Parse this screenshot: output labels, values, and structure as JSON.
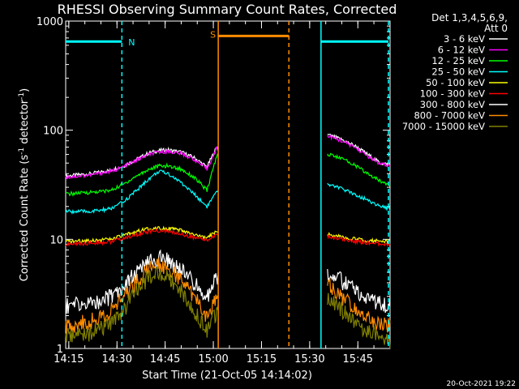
{
  "chart_data": {
    "type": "line",
    "title": "RHESSI Observing Summary Count Rates, Corrected",
    "xlabel": "Start Time (21-Oct-05 14:14:02)",
    "ylabel_main": "Corrected Count Rate (s",
    "ylabel_sup1": "-1",
    "ylabel_mid": " detector",
    "ylabel_sup2": "-1",
    "ylabel_end": ")",
    "x_start_min": 0,
    "x_end_min": 101,
    "y_scale": "log",
    "ylim": [
      1,
      1000
    ],
    "x_ticks": [
      {
        "min": 0.97,
        "label": "14:15"
      },
      {
        "min": 15.97,
        "label": "14:30"
      },
      {
        "min": 30.97,
        "label": "14:45"
      },
      {
        "min": 45.97,
        "label": "15:00"
      },
      {
        "min": 60.97,
        "label": "15:15"
      },
      {
        "min": 75.97,
        "label": "15:30"
      },
      {
        "min": 90.97,
        "label": "15:45"
      }
    ],
    "y_ticks": [
      {
        "value": 1,
        "label": "1"
      },
      {
        "value": 10,
        "label": "10"
      },
      {
        "value": 100,
        "label": "100"
      },
      {
        "value": 1000,
        "label": "1000"
      }
    ],
    "legend_header": [
      "Det 1,3,4,5,6,9,",
      "Att 0"
    ],
    "legend_position": "right",
    "gap_minutes": [
      47.5,
      81.5
    ],
    "series": [
      {
        "name": "3 - 6 keV",
        "color": "#ffffff",
        "x": [
          0,
          8,
          14,
          18,
          22,
          26,
          29,
          32,
          36,
          40,
          44,
          47,
          82,
          86,
          90,
          94,
          98,
          101
        ],
        "y": [
          38,
          40,
          43,
          47,
          54,
          62,
          65,
          66,
          63,
          56,
          46,
          70,
          90,
          82,
          72,
          60,
          50,
          48
        ]
      },
      {
        "name": "6 - 12 keV",
        "color": "#ff00ff",
        "x": [
          0,
          8,
          14,
          18,
          22,
          26,
          29,
          32,
          36,
          40,
          44,
          47,
          82,
          86,
          90,
          94,
          98,
          101
        ],
        "y": [
          37,
          39,
          42,
          46,
          53,
          60,
          63,
          64,
          61,
          54,
          44,
          68,
          88,
          80,
          70,
          58,
          49,
          47
        ]
      },
      {
        "name": "12 - 25 keV",
        "color": "#00ff00",
        "x": [
          0,
          8,
          14,
          18,
          22,
          26,
          29,
          32,
          36,
          40,
          44,
          47,
          82,
          86,
          90,
          94,
          98,
          101
        ],
        "y": [
          26,
          27,
          28,
          32,
          38,
          44,
          47,
          47,
          44,
          37,
          28,
          58,
          60,
          55,
          48,
          40,
          34,
          32
        ]
      },
      {
        "name": "25 - 50 keV",
        "color": "#00ffff",
        "x": [
          0,
          8,
          14,
          18,
          22,
          26,
          29,
          32,
          36,
          40,
          44,
          47,
          82,
          86,
          90,
          94,
          98,
          101
        ],
        "y": [
          18,
          18,
          19,
          22,
          28,
          36,
          42,
          40,
          33,
          26,
          20,
          27,
          32,
          29,
          26,
          23,
          20,
          19
        ]
      },
      {
        "name": "50 - 100 keV",
        "color": "#ffff00",
        "x": [
          0,
          8,
          14,
          18,
          22,
          26,
          29,
          32,
          36,
          40,
          44,
          47,
          82,
          86,
          90,
          94,
          98,
          101
        ],
        "y": [
          9.5,
          9.8,
          10,
          10.8,
          11.8,
          12.5,
          12.8,
          12.6,
          12.0,
          11.0,
          10.2,
          12,
          11,
          10.5,
          10.1,
          9.8,
          9.6,
          9.5
        ]
      },
      {
        "name": "100 - 300 keV",
        "color": "#ff0000",
        "x": [
          0,
          8,
          14,
          18,
          22,
          26,
          29,
          32,
          36,
          40,
          44,
          47,
          82,
          86,
          90,
          94,
          98,
          101
        ],
        "y": [
          9.0,
          9.2,
          9.5,
          10.2,
          11.0,
          11.8,
          12.0,
          11.8,
          11.2,
          10.4,
          9.8,
          11,
          10.5,
          10.0,
          9.6,
          9.3,
          9.1,
          9.0
        ]
      },
      {
        "name": "300 - 800 keV",
        "color": "#ffffff",
        "x": [
          0,
          8,
          14,
          18,
          22,
          26,
          29,
          32,
          36,
          40,
          44,
          47,
          82,
          86,
          90,
          94,
          98,
          101
        ],
        "y": [
          2.5,
          2.6,
          3.0,
          3.8,
          5.0,
          6.2,
          6.8,
          6.4,
          5.2,
          4.0,
          3.0,
          4.5,
          5.0,
          4.2,
          3.4,
          2.9,
          2.6,
          2.5
        ]
      },
      {
        "name": "800 - 7000 keV",
        "color": "#ff8c00",
        "x": [
          0,
          8,
          14,
          18,
          22,
          26,
          29,
          32,
          36,
          40,
          44,
          47,
          82,
          86,
          90,
          94,
          98,
          101
        ],
        "y": [
          1.6,
          1.8,
          2.2,
          3.0,
          4.2,
          5.4,
          6.0,
          5.6,
          4.2,
          3.0,
          2.0,
          3.0,
          4.0,
          3.0,
          2.3,
          1.9,
          1.7,
          1.6
        ]
      },
      {
        "name": "7000 - 15000 keV",
        "color": "#808000",
        "x": [
          0,
          8,
          14,
          18,
          22,
          26,
          29,
          32,
          36,
          40,
          44,
          47,
          82,
          86,
          90,
          94,
          98,
          101
        ],
        "y": [
          1.3,
          1.4,
          1.7,
          2.3,
          3.4,
          4.6,
          5.0,
          4.6,
          3.4,
          2.2,
          1.5,
          2.2,
          3.0,
          2.3,
          1.7,
          1.5,
          1.3,
          1.2
        ]
      }
    ],
    "flags": [
      {
        "label": "N",
        "color": "#00ffff",
        "segments": [
          [
            0,
            17.5
          ],
          [
            79.5,
            100.5
          ]
        ],
        "level_value": 650
      },
      {
        "label": "S",
        "color": "#ff8c00",
        "segments": [
          [
            47.5,
            69.5
          ]
        ],
        "level_value": 730
      }
    ],
    "vlines": [
      {
        "min": 17.5,
        "color": "#00ffff",
        "style": "dashed"
      },
      {
        "min": 100.5,
        "color": "#00ffff",
        "style": "dashed"
      },
      {
        "min": 79.5,
        "color": "#00ffff",
        "style": "solid"
      },
      {
        "min": 47.5,
        "color": "#ff8c00",
        "style": "solid"
      },
      {
        "min": 69.5,
        "color": "#ff8c00",
        "style": "dashed"
      }
    ],
    "legend_colors": [
      "#ffffff",
      "#ff00ff",
      "#00ff00",
      "#00ffff",
      "#ffff00",
      "#ff0000",
      "#ffffff",
      "#ff8c00",
      "#808000"
    ],
    "footer_date": "20-Oct-2021 19:22"
  }
}
